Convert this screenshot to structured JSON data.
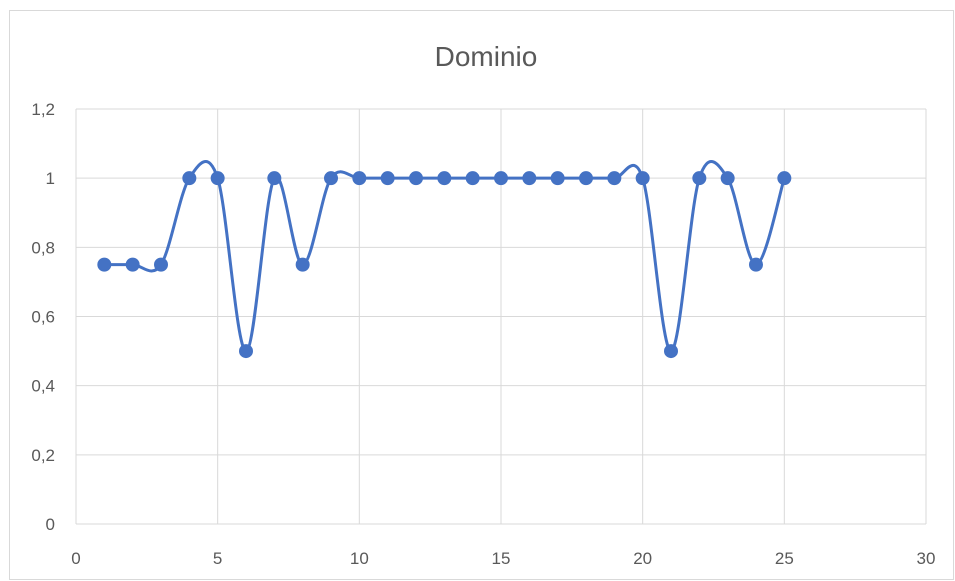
{
  "chart_data": {
    "type": "scatter",
    "title": "Dominio",
    "xlabel": "",
    "ylabel": "",
    "xlim": [
      0,
      30
    ],
    "ylim": [
      0,
      1.2
    ],
    "x_ticks": [
      0,
      5,
      10,
      15,
      20,
      25,
      30
    ],
    "y_ticks": [
      0,
      0.2,
      0.4,
      0.6,
      0.8,
      1,
      1.2
    ],
    "x_tick_labels": [
      "0",
      "5",
      "10",
      "15",
      "20",
      "25",
      "30"
    ],
    "y_tick_labels": [
      "0",
      "0,2",
      "0,4",
      "0,6",
      "0,8",
      "1",
      "1,2"
    ],
    "grid": true,
    "smooth_line": true,
    "markers": true,
    "legend": "none",
    "series": [
      {
        "color": "#4472c4",
        "x": [
          1,
          2,
          3,
          4,
          5,
          6,
          7,
          8,
          9,
          10,
          11,
          12,
          13,
          14,
          15,
          16,
          17,
          18,
          19,
          20,
          21,
          22,
          23,
          24,
          25
        ],
        "y": [
          0.75,
          0.75,
          0.75,
          1,
          1,
          0.5,
          1,
          0.75,
          1,
          1,
          1,
          1,
          1,
          1,
          1,
          1,
          1,
          1,
          1,
          1,
          0.5,
          1,
          1,
          0.75,
          1
        ]
      }
    ]
  }
}
